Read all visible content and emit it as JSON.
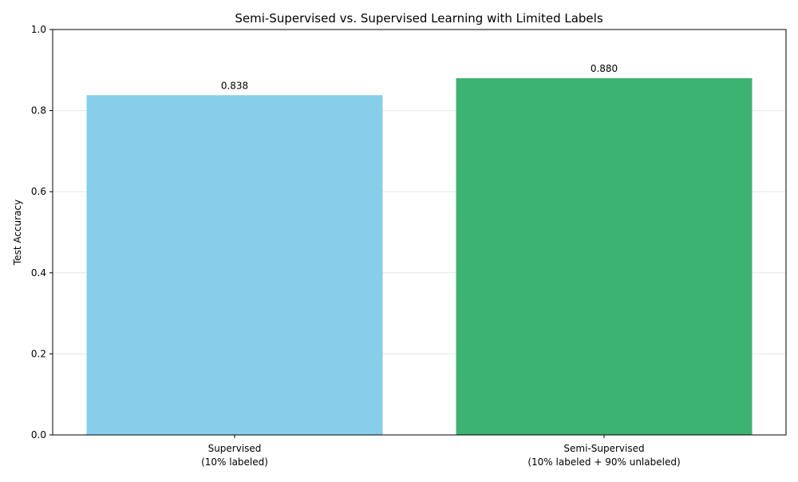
{
  "chart_data": {
    "type": "bar",
    "title": "Semi-Supervised vs. Supervised Learning with Limited Labels",
    "xlabel": "",
    "ylabel": "Test Accuracy",
    "ylim": [
      0,
      1.0
    ],
    "yticks": [
      "0.0",
      "0.2",
      "0.4",
      "0.6",
      "0.8",
      "1.0"
    ],
    "ytick_values": [
      0.0,
      0.2,
      0.4,
      0.6,
      0.8,
      1.0
    ],
    "grid": "y-axis, light",
    "categories": [
      [
        "Supervised",
        "(10% labeled)"
      ],
      [
        "Semi-Supervised",
        "(10% labeled + 90% unlabeled)"
      ]
    ],
    "values": [
      0.838,
      0.88
    ],
    "value_labels": [
      "0.838",
      "0.880"
    ],
    "colors": [
      "#87ceeb",
      "#3cb371"
    ]
  }
}
